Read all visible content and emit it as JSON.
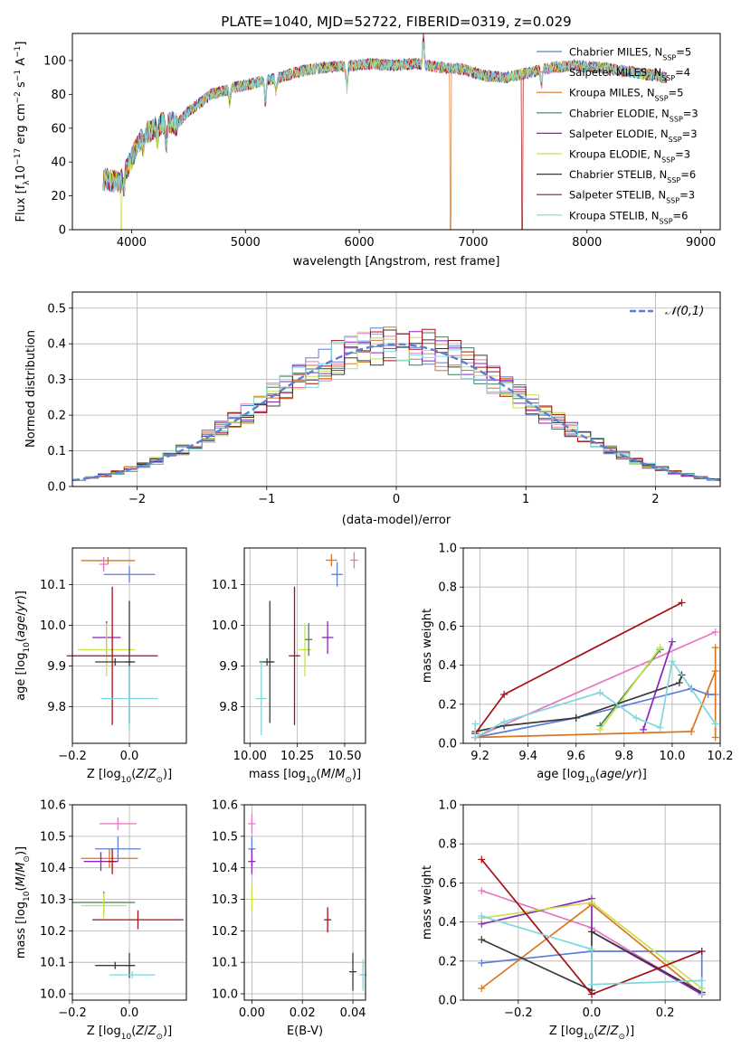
{
  "figure_title": "PLATE=1040, MJD=52722, FIBERID=0319, z=0.029",
  "colors": {
    "c0": "#5b7fd6",
    "c1": "#e377c2",
    "c2": "#d9761f",
    "c3": "#3f7f5f",
    "c4": "#8e22c1",
    "c5": "#c8e04a",
    "c6": "#3a3a3a",
    "c7": "#a50f15",
    "c8": "#7fd7dc"
  },
  "chart_data": [
    {
      "type": "line",
      "title": "PLATE=1040, MJD=52722, FIBERID=0319, z=0.029",
      "xlabel": "wavelength [Angstrom, rest frame]",
      "ylabel": "Flux [f_λ 10^-17 erg cm^-2 s^-1 A^-1]",
      "xlim": [
        3480,
        9170
      ],
      "ylim": [
        0,
        116
      ],
      "xticks": [
        "4000",
        "5000",
        "6000",
        "7000",
        "8000",
        "9000"
      ],
      "yticks": [
        "0",
        "20",
        "40",
        "60",
        "80",
        "100"
      ],
      "legend_position": "top-right",
      "series": [
        {
          "name": "Chabrier MILES, N_SSP=5",
          "label": "Chabrier MILES, N",
          "n": "5",
          "color": "c0"
        },
        {
          "name": "Salpeter MILES, N_SSP=4",
          "label": "Salpeter MILES, N",
          "n": "4",
          "color": "c1"
        },
        {
          "name": "Kroupa MILES, N_SSP=5",
          "label": "Kroupa MILES, N",
          "n": "5",
          "color": "c2"
        },
        {
          "name": "Chabrier ELODIE, N_SSP=3",
          "label": "Chabrier ELODIE, N",
          "n": "3",
          "color": "c3"
        },
        {
          "name": "Salpeter ELODIE, N_SSP=3",
          "label": "Salpeter ELODIE, N",
          "n": "3",
          "color": "c4"
        },
        {
          "name": "Kroupa ELODIE, N_SSP=3",
          "label": "Kroupa ELODIE, N",
          "n": "3",
          "color": "c5"
        },
        {
          "name": "Chabrier STELIB, N_SSP=6",
          "label": "Chabrier STELIB, N",
          "n": "6",
          "color": "c6"
        },
        {
          "name": "Salpeter STELIB, N_SSP=3",
          "label": "Salpeter STELIB, N",
          "n": "3",
          "color": "c7"
        },
        {
          "name": "Kroupa STELIB, N_SSP=6",
          "label": "Kroupa STELIB, N",
          "n": "6",
          "color": "c8"
        }
      ],
      "continuum": [
        [
          3750,
          30
        ],
        [
          3900,
          28
        ],
        [
          4000,
          42
        ],
        [
          4100,
          56
        ],
        [
          4300,
          64
        ],
        [
          4400,
          62
        ],
        [
          4500,
          70
        ],
        [
          4700,
          80
        ],
        [
          4900,
          84
        ],
        [
          5100,
          87
        ],
        [
          5300,
          90
        ],
        [
          5500,
          94
        ],
        [
          5700,
          96
        ],
        [
          5900,
          97
        ],
        [
          6100,
          98
        ],
        [
          6300,
          97
        ],
        [
          6500,
          98
        ],
        [
          6700,
          96
        ],
        [
          6900,
          95
        ],
        [
          7100,
          91
        ],
        [
          7300,
          90
        ],
        [
          7500,
          93
        ],
        [
          7700,
          96
        ],
        [
          7900,
          97
        ],
        [
          8100,
          96
        ],
        [
          8300,
          94
        ],
        [
          8500,
          92
        ],
        [
          8700,
          90
        ]
      ],
      "spikes": [
        [
          3933,
          -8
        ],
        [
          4102,
          -8
        ],
        [
          4226,
          -8
        ],
        [
          4305,
          -14
        ],
        [
          4861,
          -8
        ],
        [
          5175,
          -14
        ],
        [
          5270,
          -8
        ],
        [
          5890,
          -14
        ],
        [
          6563,
          16
        ],
        [
          7600,
          -8
        ]
      ],
      "dropouts": [
        {
          "x": 3910,
          "color": "c5"
        },
        {
          "x": 6800,
          "color": "c2"
        },
        {
          "x": 7430,
          "color": "c7"
        }
      ]
    },
    {
      "type": "histogram",
      "xlabel": "(data-model)/error",
      "ylabel": "Normed distribution",
      "xlim": [
        -2.5,
        2.5
      ],
      "ylim": [
        0,
        0.545
      ],
      "xticks": [
        "−2",
        "−1",
        "0",
        "1",
        "2"
      ],
      "yticks": [
        "0.0",
        "0.1",
        "0.2",
        "0.3",
        "0.4",
        "0.5"
      ],
      "bin_width": 0.1,
      "reference_curve": {
        "name": "𝒩(0,1)",
        "mean": 0,
        "sigma": 1,
        "color": "c0"
      },
      "legend_position": "top-right",
      "series_colors": [
        "c0",
        "c1",
        "c2",
        "c3",
        "c4",
        "c5",
        "c6",
        "c7",
        "c8"
      ]
    },
    {
      "type": "scatter",
      "xlabel": "Z [log10(Z/Z_⊙)]",
      "ylabel": "age  [log10(age/yr)]",
      "xlim": [
        -0.2,
        0.2
      ],
      "ylim": [
        9.71,
        10.19
      ],
      "xticks": [
        "−0.2",
        "0.0"
      ],
      "yticks": [
        "9.8",
        "9.9",
        "10.0",
        "10.1"
      ],
      "points": [
        {
          "x": -0.075,
          "y": 10.159,
          "xerr": 0.095,
          "yerr": 0.0,
          "color": "c2"
        },
        {
          "x": -0.09,
          "y": 10.15,
          "xerr": 0.015,
          "yerr": 0.018,
          "color": "c1"
        },
        {
          "x": 0.0,
          "y": 10.125,
          "xerr": 0.09,
          "yerr": 0.02,
          "color": "c0"
        },
        {
          "x": -0.08,
          "y": 9.97,
          "xerr": 0.05,
          "yerr": 0.04,
          "color": "c4"
        },
        {
          "x": -0.08,
          "y": 9.94,
          "xerr": 0.1,
          "yerr": 0.065,
          "color": "c5"
        },
        {
          "x": -0.06,
          "y": 9.925,
          "xerr": 0.16,
          "yerr": 0.17,
          "color": "c7"
        },
        {
          "x": -0.05,
          "y": 9.91,
          "xerr": 0.07,
          "yerr": 0.0,
          "color": "c6"
        },
        {
          "x": 0.0,
          "y": 9.91,
          "xerr": 0.0,
          "yerr": 0.15,
          "color": "c6"
        },
        {
          "x": 0.0,
          "y": 9.82,
          "xerr": 0.1,
          "yerr": 0.08,
          "color": "c8"
        }
      ]
    },
    {
      "type": "scatter",
      "xlabel": "mass [log10(M/M_⊙)]",
      "ylabel": "",
      "xlim": [
        9.97,
        10.61
      ],
      "ylim": [
        9.71,
        10.19
      ],
      "xticks": [
        "10.00",
        "10.25",
        "10.50"
      ],
      "yticks": [
        "9.8",
        "9.9",
        "10.0",
        "10.1"
      ],
      "points": [
        {
          "x": 10.43,
          "y": 10.16,
          "xerr": 0.03,
          "yerr": 0.015,
          "color": "c2"
        },
        {
          "x": 10.55,
          "y": 10.16,
          "xerr": 0.02,
          "yerr": 0.02,
          "color": "c1"
        },
        {
          "x": 10.46,
          "y": 10.125,
          "xerr": 0.03,
          "yerr": 0.03,
          "color": "c0"
        },
        {
          "x": 10.09,
          "y": 9.91,
          "xerr": 0.04,
          "yerr": 0.0,
          "color": "c6"
        },
        {
          "x": 10.105,
          "y": 9.91,
          "xerr": 0.0,
          "yerr": 0.15,
          "color": "c6"
        },
        {
          "x": 10.41,
          "y": 9.97,
          "xerr": 0.03,
          "yerr": 0.04,
          "color": "c4"
        },
        {
          "x": 10.29,
          "y": 9.94,
          "xerr": 0.035,
          "yerr": 0.065,
          "color": "c5"
        },
        {
          "x": 10.31,
          "y": 9.965,
          "xerr": 0.0,
          "yerr": 0.04,
          "color": "c3"
        },
        {
          "x": 10.235,
          "y": 9.925,
          "xerr": 0.03,
          "yerr": 0.17,
          "color": "c7"
        },
        {
          "x": 10.06,
          "y": 9.82,
          "xerr": 0.03,
          "yerr": 0.09,
          "color": "c8"
        }
      ]
    },
    {
      "type": "line",
      "xlabel": "age  [log10(age/yr)]",
      "ylabel": "mass weight",
      "xlim": [
        9.13,
        10.2
      ],
      "ylim": [
        0,
        1.0
      ],
      "xticks": [
        "9.2",
        "9.4",
        "9.6",
        "9.8",
        "10.0",
        "10.2"
      ],
      "yticks": [
        "0.0",
        "0.2",
        "0.4",
        "0.6",
        "0.8",
        "1.0"
      ],
      "series": [
        {
          "color": "c0",
          "points": [
            [
              9.18,
              0.03
            ],
            [
              9.6,
              0.13
            ],
            [
              10.08,
              0.28
            ],
            [
              10.15,
              0.25
            ],
            [
              10.18,
              0.25
            ]
          ]
        },
        {
          "color": "c1",
          "points": [
            [
              9.18,
              0.03
            ],
            [
              10.18,
              0.57
            ]
          ]
        },
        {
          "color": "c2",
          "points": [
            [
              9.18,
              0.03
            ],
            [
              10.08,
              0.06
            ],
            [
              10.18,
              0.37
            ],
            [
              10.18,
              0.49
            ],
            [
              10.18,
              0.03
            ]
          ]
        },
        {
          "color": "c3",
          "points": [
            [
              9.7,
              0.09
            ],
            [
              9.95,
              0.48
            ]
          ]
        },
        {
          "color": "c4",
          "points": [
            [
              9.88,
              0.07
            ],
            [
              10.0,
              0.52
            ]
          ]
        },
        {
          "color": "c5",
          "points": [
            [
              9.7,
              0.07
            ],
            [
              9.95,
              0.49
            ]
          ]
        },
        {
          "color": "c6",
          "points": [
            [
              9.18,
              0.06
            ],
            [
              9.3,
              0.09
            ],
            [
              9.6,
              0.13
            ],
            [
              10.03,
              0.31
            ],
            [
              10.04,
              0.35
            ]
          ]
        },
        {
          "color": "c7",
          "points": [
            [
              9.18,
              0.05
            ],
            [
              9.3,
              0.25
            ],
            [
              10.04,
              0.72
            ]
          ]
        },
        {
          "color": "c8",
          "points": [
            [
              9.18,
              0.1
            ],
            [
              9.18,
              0.03
            ],
            [
              9.3,
              0.11
            ],
            [
              9.7,
              0.26
            ],
            [
              9.85,
              0.13
            ],
            [
              9.95,
              0.08
            ],
            [
              10.0,
              0.42
            ],
            [
              10.18,
              0.1
            ]
          ]
        }
      ]
    },
    {
      "type": "scatter",
      "xlabel": "Z [log10(Z/Z_⊙)]",
      "ylabel": "mass [log10(M/M_⊙)]",
      "xlim": [
        -0.2,
        0.2
      ],
      "ylim": [
        9.98,
        10.6
      ],
      "xticks": [
        "−0.2",
        "0.0"
      ],
      "yticks": [
        "10.0",
        "10.1",
        "10.2",
        "10.3",
        "10.4",
        "10.5",
        "10.6"
      ],
      "points": [
        {
          "x": -0.04,
          "y": 10.54,
          "xerr": 0.065,
          "yerr": 0.02,
          "color": "c1"
        },
        {
          "x": -0.04,
          "y": 10.46,
          "xerr": 0.08,
          "yerr": 0.04,
          "color": "c0"
        },
        {
          "x": -0.07,
          "y": 10.43,
          "xerr": 0.1,
          "yerr": 0.03,
          "color": "c2"
        },
        {
          "x": -0.1,
          "y": 10.42,
          "xerr": 0.06,
          "yerr": 0.03,
          "color": "c4"
        },
        {
          "x": -0.06,
          "y": 10.42,
          "xerr": 0.0,
          "yerr": 0.04,
          "color": "c7"
        },
        {
          "x": -0.09,
          "y": 10.29,
          "xerr": 0.11,
          "yerr": 0.035,
          "color": "c3"
        },
        {
          "x": -0.09,
          "y": 10.28,
          "xerr": 0.08,
          "yerr": 0.04,
          "color": "c5"
        },
        {
          "x": 0.03,
          "y": 10.235,
          "xerr": 0.16,
          "yerr": 0.03,
          "color": "c7"
        },
        {
          "x": -0.05,
          "y": 10.09,
          "xerr": 0.07,
          "yerr": 0.0,
          "color": "c6"
        },
        {
          "x": 0.0,
          "y": 10.09,
          "xerr": 0.0,
          "yerr": 0.04,
          "color": "c6"
        },
        {
          "x": 0.01,
          "y": 10.06,
          "xerr": 0.08,
          "yerr": 0.0,
          "color": "c8"
        }
      ]
    },
    {
      "type": "scatter",
      "xlabel": "E(B-V)",
      "ylabel": "",
      "xlim": [
        -0.003,
        0.045
      ],
      "ylim": [
        9.98,
        10.6
      ],
      "xticks": [
        "0.00",
        "0.02",
        "0.04"
      ],
      "yticks": [
        "10.0",
        "10.1",
        "10.2",
        "10.3",
        "10.4",
        "10.5",
        "10.6"
      ],
      "points": [
        {
          "x": 0.0,
          "y": 10.54,
          "xerr": 0.0,
          "yerr": 0.03,
          "color": "c1"
        },
        {
          "x": 0.0,
          "y": 10.46,
          "xerr": 0.0,
          "yerr": 0.04,
          "color": "c0"
        },
        {
          "x": 0.0,
          "y": 10.42,
          "xerr": 0.0,
          "yerr": 0.04,
          "color": "c4"
        },
        {
          "x": 0.0,
          "y": 10.3,
          "xerr": 0.0,
          "yerr": 0.04,
          "color": "c5"
        },
        {
          "x": 0.03,
          "y": 10.235,
          "xerr": 0.0,
          "yerr": 0.04,
          "color": "c7"
        },
        {
          "x": 0.04,
          "y": 10.07,
          "xerr": 0.0,
          "yerr": 0.06,
          "color": "c6"
        },
        {
          "x": 0.044,
          "y": 10.06,
          "xerr": 0.0,
          "yerr": 0.05,
          "color": "c8"
        }
      ]
    },
    {
      "type": "line",
      "xlabel": "Z [log10(Z/Z_⊙)]",
      "ylabel": "mass weight",
      "xlim": [
        -0.35,
        0.35
      ],
      "ylim": [
        0,
        1.0
      ],
      "xticks": [
        "−0.2",
        "0.0",
        "0.2"
      ],
      "yticks": [
        "0.0",
        "0.2",
        "0.4",
        "0.6",
        "0.8",
        "1.0"
      ],
      "series": [
        {
          "color": "c0",
          "points": [
            [
              -0.3,
              0.19
            ],
            [
              0.0,
              0.25
            ],
            [
              0.3,
              0.25
            ],
            [
              0.3,
              0.03
            ]
          ]
        },
        {
          "color": "c1",
          "points": [
            [
              -0.3,
              0.56
            ],
            [
              0.0,
              0.37
            ],
            [
              0.3,
              0.03
            ]
          ]
        },
        {
          "color": "c2",
          "points": [
            [
              -0.3,
              0.06
            ],
            [
              0.0,
              0.49
            ],
            [
              0.3,
              0.03
            ]
          ]
        },
        {
          "color": "c4",
          "points": [
            [
              -0.3,
              0.39
            ],
            [
              0.0,
              0.52
            ],
            [
              0.0,
              0.35
            ],
            [
              0.3,
              0.03
            ]
          ]
        },
        {
          "color": "c5",
          "points": [
            [
              -0.3,
              0.42
            ],
            [
              0.0,
              0.5
            ],
            [
              0.3,
              0.06
            ]
          ]
        },
        {
          "color": "c6",
          "points": [
            [
              -0.3,
              0.31
            ],
            [
              0.0,
              0.05
            ],
            [
              0.0,
              0.35
            ],
            [
              0.3,
              0.04
            ]
          ]
        },
        {
          "color": "c7",
          "points": [
            [
              -0.3,
              0.72
            ],
            [
              0.0,
              0.03
            ],
            [
              0.3,
              0.25
            ]
          ]
        },
        {
          "color": "c8",
          "points": [
            [
              -0.3,
              0.43
            ],
            [
              0.0,
              0.26
            ],
            [
              0.0,
              0.08
            ],
            [
              0.3,
              0.1
            ],
            [
              0.3,
              0.03
            ]
          ]
        }
      ]
    }
  ]
}
